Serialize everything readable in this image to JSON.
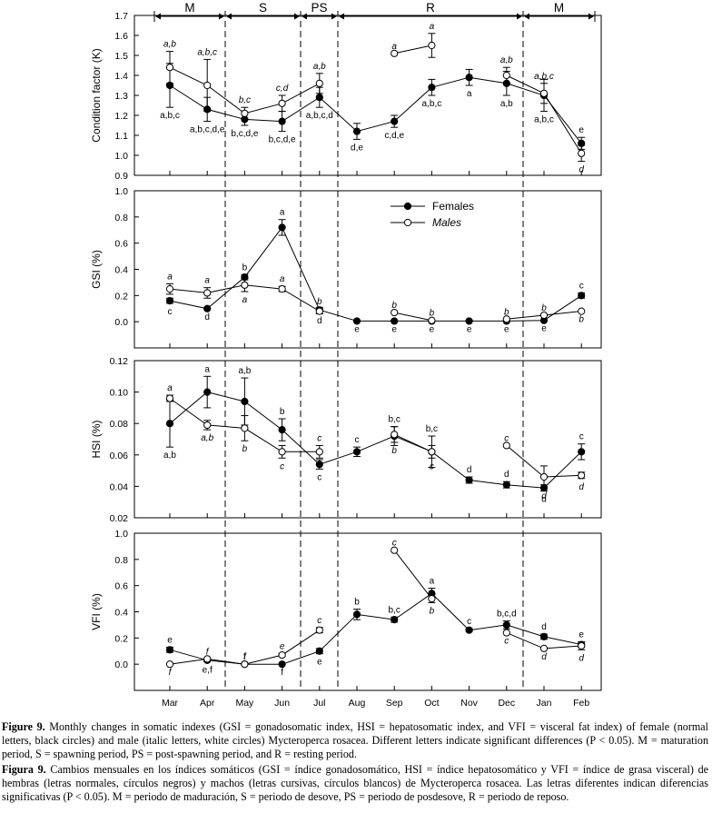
{
  "months": [
    "Mar",
    "Apr",
    "May",
    "Jun",
    "Jul",
    "Aug",
    "Sep",
    "Oct",
    "Nov",
    "Dec",
    "Jan",
    "Feb"
  ],
  "periods": [
    {
      "label": "M",
      "from": "Mar",
      "to": "Apr"
    },
    {
      "label": "S",
      "from": "May",
      "to": "Jun"
    },
    {
      "label": "PS",
      "from": "Jul",
      "to": "Jul"
    },
    {
      "label": "R",
      "from": "Aug",
      "to": "Dec"
    },
    {
      "label": "M",
      "from": "Jan",
      "to": "Feb"
    }
  ],
  "legend": {
    "females": "Females",
    "males": "Males"
  },
  "chart_data": [
    {
      "type": "line",
      "ylabel": "Condition factor (K)",
      "ylim": [
        0.9,
        1.7
      ],
      "yticks": [
        "0.9",
        "1.0",
        "1.1",
        "1.2",
        "1.3",
        "1.4",
        "1.5",
        "1.6",
        "1.7"
      ],
      "series": [
        {
          "name": "Females",
          "marker": "filled",
          "values": [
            1.35,
            1.23,
            1.18,
            1.17,
            1.29,
            1.12,
            1.17,
            1.34,
            1.39,
            1.36,
            1.3,
            1.06
          ],
          "err": [
            0.11,
            0.06,
            0.03,
            0.05,
            0.05,
            0.04,
            0.03,
            0.04,
            0.04,
            0.06,
            0.08,
            0.03
          ],
          "labels": [
            "a,b,c",
            "a,b,c,d,e",
            "b,c,d,e",
            "b,c,d,e",
            "a,b,c,d",
            "d,e",
            "c,d,e",
            "a,b,c",
            "a",
            "a,b",
            "a,b,c",
            "e"
          ],
          "label_pos": [
            "below",
            "below",
            "below",
            "below",
            "below",
            "below",
            "below",
            "below",
            "below",
            "below",
            "below",
            "above"
          ],
          "segments": [
            [
              0,
              11
            ]
          ]
        },
        {
          "name": "Males",
          "marker": "open",
          "values": [
            1.44,
            1.35,
            1.21,
            1.26,
            1.36,
            null,
            1.51,
            1.55,
            null,
            1.4,
            1.31,
            1.01
          ],
          "err": [
            0.08,
            0.13,
            0.03,
            0.04,
            0.05,
            null,
            0,
            0.06,
            null,
            0.04,
            0.05,
            0.04
          ],
          "labels": [
            "a,b",
            "a,b,c",
            "b,c",
            "c,d",
            "a,b",
            null,
            "a",
            "a",
            null,
            "a,b",
            "a,b,c",
            "d"
          ],
          "label_pos": [
            "above",
            "above",
            "above",
            "above",
            "above",
            null,
            "above",
            "above",
            null,
            "above",
            "above",
            "below"
          ],
          "segments": [
            [
              0,
              4
            ],
            [
              6,
              7
            ],
            [
              9,
              11
            ]
          ]
        }
      ]
    },
    {
      "type": "line",
      "ylabel": "GSI (%)",
      "ylim": [
        -0.2,
        1.0
      ],
      "yticks": [
        "0.0",
        "0.2",
        "0.4",
        "0.6",
        "0.8",
        "1.0"
      ],
      "series": [
        {
          "name": "Females",
          "marker": "filled",
          "values": [
            0.16,
            0.1,
            0.34,
            0.72,
            0.09,
            0.005,
            0.005,
            0.005,
            0.005,
            0.005,
            0.01,
            0.2
          ],
          "err": [
            0.02,
            0,
            0.02,
            0.06,
            0.02,
            0,
            0,
            0,
            0,
            0,
            0,
            0.02
          ],
          "labels": [
            "c",
            "d",
            "b",
            "a",
            "d",
            "e",
            "e",
            "e",
            "e",
            "e",
            "e",
            "c"
          ],
          "label_pos": [
            "below",
            "below",
            "above",
            "above",
            "below",
            "below",
            "below",
            "below",
            "below",
            "below",
            "below",
            "above"
          ],
          "segments": [
            [
              0,
              11
            ]
          ]
        },
        {
          "name": "Males",
          "marker": "open",
          "values": [
            0.25,
            0.22,
            0.28,
            0.25,
            0.08,
            null,
            0.07,
            0.01,
            null,
            0.02,
            0.05,
            0.08
          ],
          "err": [
            0.04,
            0.04,
            0.05,
            0.02,
            0.02,
            null,
            0,
            0,
            null,
            0,
            0,
            0
          ],
          "labels": [
            "a",
            "a",
            "a",
            "a",
            "b",
            null,
            "b",
            "b",
            null,
            "b",
            "b",
            "b"
          ],
          "label_pos": [
            "above",
            "above",
            "below",
            "above",
            "above",
            null,
            "above",
            "above",
            null,
            "above",
            "above",
            "below"
          ],
          "segments": [
            [
              0,
              4
            ],
            [
              6,
              7
            ],
            [
              9,
              11
            ]
          ]
        }
      ]
    },
    {
      "type": "line",
      "ylabel": "HSI (%)",
      "ylim": [
        0.02,
        0.12
      ],
      "yticks": [
        "0.02",
        "0.04",
        "0.06",
        "0.08",
        "0.10",
        "0.12"
      ],
      "series": [
        {
          "name": "Females",
          "marker": "filled",
          "values": [
            0.08,
            0.1,
            0.094,
            0.076,
            0.054,
            0.062,
            0.072,
            0.062,
            0.044,
            0.041,
            0.039,
            0.062
          ],
          "err": [
            0.015,
            0.01,
            0.015,
            0.007,
            0.003,
            0.003,
            0.006,
            0.01,
            0.002,
            0.002,
            0.002,
            0.005
          ],
          "labels": [
            "a,b",
            "a",
            "a,b",
            "b",
            "c",
            "c",
            "b,c",
            "b,c",
            "d",
            "d",
            "d",
            "c"
          ],
          "label_pos": [
            "below",
            "above",
            "above",
            "above",
            "below",
            "above",
            "above",
            "above",
            "above",
            "above",
            "below",
            "above"
          ],
          "segments": [
            [
              0,
              11
            ]
          ]
        },
        {
          "name": "Males",
          "marker": "open",
          "values": [
            0.096,
            0.079,
            0.077,
            0.062,
            0.062,
            null,
            0.073,
            0.062,
            null,
            0.066,
            0.046,
            0.047
          ],
          "err": [
            0.002,
            0.003,
            0.008,
            0.004,
            0.004,
            null,
            0.005,
            0.004,
            null,
            0,
            0.007,
            0.002
          ],
          "labels": [
            "a",
            "a,b",
            "b",
            "c",
            "c",
            null,
            "b",
            "c",
            null,
            "c",
            "d",
            "d"
          ],
          "label_pos": [
            "above",
            "below",
            "below",
            "below",
            "above",
            null,
            "below",
            "below",
            null,
            "above",
            "below",
            "below"
          ],
          "segments": [
            [
              0,
              4
            ],
            [
              6,
              7
            ],
            [
              9,
              11
            ]
          ]
        }
      ]
    },
    {
      "type": "line",
      "ylabel": "VFI (%)",
      "ylim": [
        -0.2,
        1.0
      ],
      "yticks": [
        "0.0",
        "0.2",
        "0.4",
        "0.6",
        "0.8",
        "1.0"
      ],
      "series": [
        {
          "name": "Females",
          "marker": "filled",
          "values": [
            0.11,
            0.03,
            0.0,
            0.0,
            0.1,
            0.38,
            0.34,
            0.54,
            0.26,
            0.3,
            0.21,
            0.15
          ],
          "err": [
            0.02,
            0.01,
            0,
            0,
            0.02,
            0.04,
            0.02,
            0.04,
            0.01,
            0.03,
            0.02,
            0.02
          ],
          "labels": [
            "e",
            "e,f",
            "f",
            "f",
            "e",
            "b",
            "b,c",
            "a",
            "c",
            "b,c,d",
            "d",
            "e"
          ],
          "label_pos": [
            "above",
            "below",
            "above",
            "below",
            "below",
            "above",
            "above",
            "above",
            "above",
            "above",
            "above",
            "above"
          ],
          "segments": [
            [
              0,
              11
            ]
          ]
        },
        {
          "name": "Males",
          "marker": "open",
          "values": [
            0.0,
            0.04,
            0.0,
            0.07,
            0.26,
            null,
            0.87,
            0.5,
            null,
            0.24,
            0.12,
            0.14
          ],
          "err": [
            0,
            0,
            0,
            0.01,
            0.02,
            null,
            0,
            0.03,
            null,
            0,
            0,
            0.03
          ],
          "labels": [
            "f",
            "f",
            "f",
            "e",
            "c",
            null,
            "c",
            "b",
            null,
            "c",
            "d",
            "d"
          ],
          "label_pos": [
            "below",
            "above",
            "above",
            "above",
            "above",
            null,
            "above",
            "below",
            null,
            "below",
            "below",
            "below"
          ],
          "segments": [
            [
              0,
              4
            ],
            [
              6,
              7
            ],
            [
              9,
              11
            ]
          ]
        }
      ]
    }
  ],
  "caption_en": {
    "label": "Figure 9.",
    "text": "Monthly changes in somatic indexes (GSI = gonadosomatic index, HSI = hepatosomatic index, and VFI = visceral fat index) of female (normal letters, black circles) and male (italic letters, white circles) Mycteroperca rosacea. Different letters indicate significant differences (P < 0.05). M = maturation period, S = spawning period, PS = post-spawning period, and R = resting period."
  },
  "caption_es": {
    "label": "Figura 9.",
    "text": "Cambios mensuales en los índices somáticos (GSI = índice gonadosomático, HSI = índice hepatosomático y VFI = índice de grasa visceral) de hembras (letras normales, círculos negros) y machos (letras cursivas, círculos blancos) de Mycteroperca rosacea. Las letras diferentes indican diferencias significativas (P < 0.05). M = periodo de maduración, S = periodo de desove, PS = periodo de posdesove, R = periodo de reposo."
  }
}
